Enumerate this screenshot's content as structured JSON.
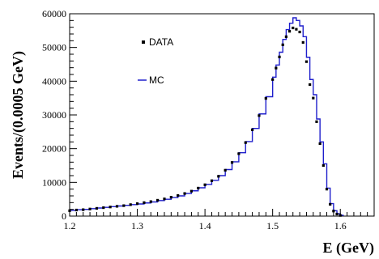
{
  "chart_data": {
    "type": "line",
    "title": "",
    "xlabel": "E (GeV)",
    "ylabel": "Events/(0.0005 GeV)",
    "xlim": [
      1.2,
      1.65
    ],
    "ylim": [
      0,
      60000
    ],
    "x_ticks": [
      1.2,
      1.3,
      1.4,
      1.5,
      1.6
    ],
    "x_tick_labels": [
      "1.2",
      "1.3",
      "1.4",
      "1.5",
      "1.6"
    ],
    "y_ticks": [
      0,
      10000,
      20000,
      30000,
      40000,
      50000,
      60000
    ],
    "y_tick_labels": [
      "0",
      "10000",
      "20000",
      "30000",
      "40000",
      "50000",
      "60000"
    ],
    "grid": false,
    "legend": {
      "placement": "top-left",
      "entries": [
        "DATA",
        "MC"
      ]
    },
    "series": [
      {
        "name": "DATA",
        "style": "points",
        "color": "#000000",
        "x": [
          1.2,
          1.21,
          1.22,
          1.23,
          1.24,
          1.25,
          1.26,
          1.27,
          1.28,
          1.29,
          1.3,
          1.31,
          1.32,
          1.33,
          1.34,
          1.35,
          1.36,
          1.37,
          1.38,
          1.39,
          1.4,
          1.41,
          1.42,
          1.43,
          1.44,
          1.45,
          1.46,
          1.47,
          1.48,
          1.49,
          1.5,
          1.505,
          1.51,
          1.515,
          1.52,
          1.525,
          1.53,
          1.535,
          1.54,
          1.545,
          1.55,
          1.555,
          1.56,
          1.565,
          1.57,
          1.575,
          1.58,
          1.585,
          1.59,
          1.595,
          1.6
        ],
        "values": [
          1600,
          1800,
          1900,
          2100,
          2300,
          2500,
          2700,
          2900,
          3100,
          3400,
          3700,
          4000,
          4300,
          4700,
          5100,
          5600,
          6100,
          6700,
          7400,
          8300,
          9300,
          10500,
          11800,
          13600,
          15900,
          18500,
          21800,
          25600,
          29800,
          34900,
          40500,
          43900,
          47200,
          50800,
          53200,
          54800,
          55800,
          55400,
          54600,
          51500,
          45800,
          39000,
          35000,
          28000,
          21500,
          15000,
          8000,
          3500,
          1500,
          600,
          200
        ]
      },
      {
        "name": "MC",
        "style": "step",
        "color": "#1f1fcc",
        "x": [
          1.2,
          1.21,
          1.22,
          1.23,
          1.24,
          1.25,
          1.26,
          1.27,
          1.28,
          1.29,
          1.3,
          1.31,
          1.32,
          1.33,
          1.34,
          1.35,
          1.36,
          1.37,
          1.38,
          1.39,
          1.4,
          1.41,
          1.42,
          1.43,
          1.44,
          1.45,
          1.46,
          1.47,
          1.48,
          1.49,
          1.5,
          1.505,
          1.51,
          1.515,
          1.52,
          1.525,
          1.53,
          1.535,
          1.54,
          1.545,
          1.55,
          1.555,
          1.56,
          1.565,
          1.57,
          1.575,
          1.58,
          1.585,
          1.59,
          1.595,
          1.6,
          1.605
        ],
        "values": [
          1700,
          1900,
          2000,
          2200,
          2400,
          2600,
          2800,
          3000,
          3200,
          3400,
          3600,
          3900,
          4200,
          4600,
          5000,
          5500,
          6000,
          6700,
          7500,
          8400,
          9400,
          10600,
          12000,
          13800,
          16100,
          18800,
          22100,
          26000,
          30300,
          35400,
          41200,
          44800,
          48600,
          52400,
          55300,
          57200,
          58800,
          58000,
          56400,
          53200,
          47100,
          40500,
          36000,
          28800,
          22000,
          15500,
          8300,
          3700,
          1600,
          700,
          250,
          0
        ]
      }
    ]
  }
}
